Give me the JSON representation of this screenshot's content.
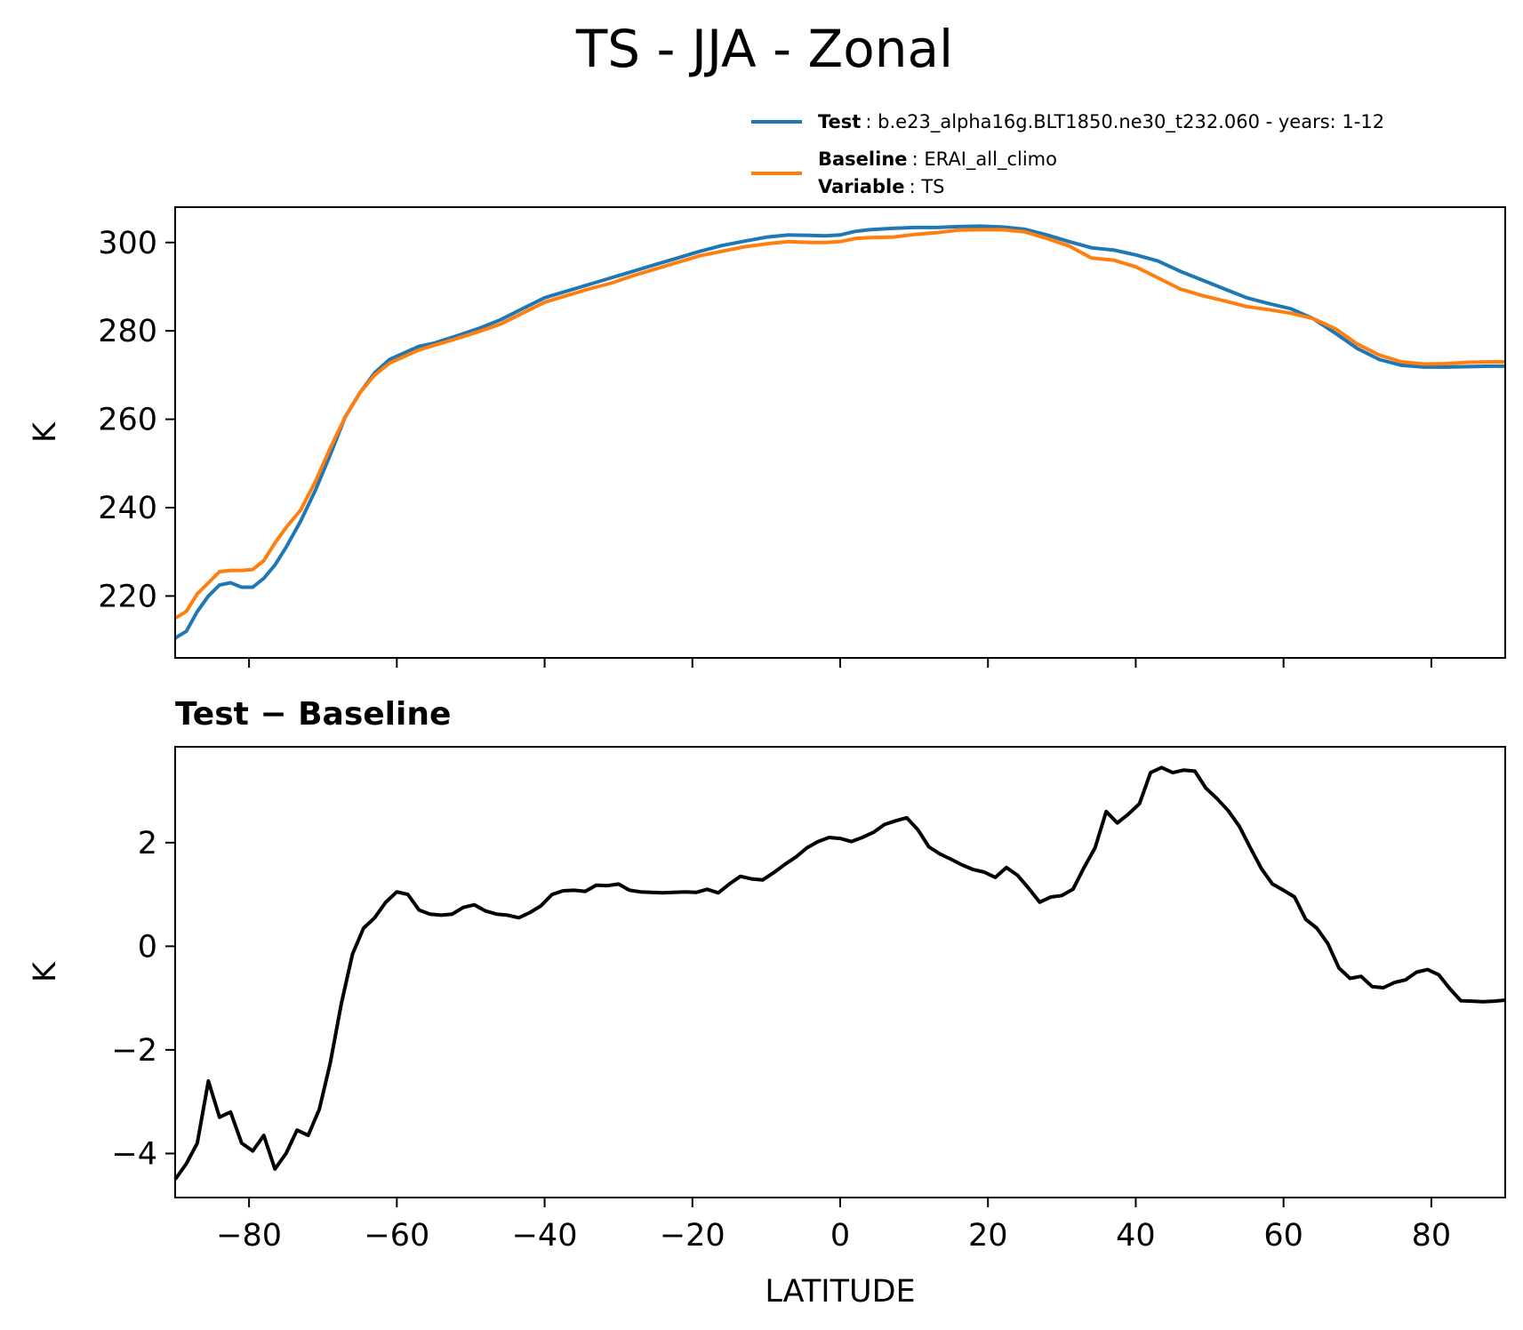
{
  "title": "TS - JJA - Zonal",
  "legend": {
    "test_key": "Test",
    "test_value": ": b.e23_alpha16g.BLT1850.ne30_t232.060 - years: 1-12",
    "baseline_key": "Baseline",
    "baseline_value": ": ERAI_all_climo",
    "variable_key": "Variable",
    "variable_value": ": TS"
  },
  "colors": {
    "test": "#1f77b4",
    "baseline": "#ff7f0e",
    "diff": "#000000"
  },
  "chart_data": [
    {
      "type": "line",
      "title": "",
      "xlabel": "",
      "ylabel": "K",
      "xlim": [
        -90,
        90
      ],
      "ylim": [
        206,
        308
      ],
      "xticks": [
        -80,
        -60,
        -40,
        -20,
        0,
        20,
        40,
        60,
        80
      ],
      "yticks": [
        220,
        240,
        260,
        280,
        300
      ],
      "ytick_labels": [
        "220",
        "240",
        "260",
        "280",
        "300"
      ],
      "x": [
        -90,
        -88.5,
        -87,
        -85.5,
        -84,
        -82.5,
        -81,
        -79.5,
        -78,
        -76.5,
        -75,
        -73,
        -71,
        -69,
        -67,
        -65,
        -63,
        -61,
        -59,
        -57,
        -55,
        -52,
        -49,
        -46,
        -43,
        -40,
        -37,
        -34,
        -31,
        -28,
        -25,
        -22,
        -19,
        -16,
        -13,
        -10,
        -7,
        -4,
        -2,
        0,
        2,
        4,
        7,
        10,
        13,
        16,
        19,
        22,
        25,
        28,
        31,
        34,
        37,
        40,
        43,
        46,
        49,
        52,
        55,
        58,
        61,
        64,
        67,
        70,
        73,
        76,
        79,
        82,
        85,
        88,
        90
      ],
      "series": [
        {
          "name": "Test",
          "values": [
            210.5,
            212,
            216.5,
            220,
            222.5,
            223,
            222,
            222,
            224,
            227,
            231,
            237,
            244,
            252,
            260.5,
            266,
            270.5,
            273.5,
            275,
            276.5,
            277.2,
            278.8,
            280.5,
            282.5,
            285,
            287.5,
            289,
            290.5,
            292,
            293.5,
            295,
            296.5,
            298,
            299.3,
            300.3,
            301.2,
            301.7,
            301.6,
            301.5,
            301.7,
            302.5,
            302.9,
            303.2,
            303.4,
            303.4,
            303.6,
            303.7,
            303.5,
            303.0,
            301.7,
            300.2,
            298.8,
            298.3,
            297.2,
            295.8,
            293.5,
            291.5,
            289.5,
            287.5,
            286.2,
            285,
            282.8,
            279.5,
            276,
            273.5,
            272.2,
            271.8,
            271.8,
            271.9,
            272,
            272
          ],
          "color": "#1f77b4"
        },
        {
          "name": "Baseline",
          "values": [
            215,
            216.5,
            220.5,
            223,
            225.5,
            225.8,
            225.8,
            226,
            228,
            232,
            235.5,
            239.5,
            246,
            253.5,
            260.5,
            266,
            270,
            272.7,
            274.2,
            275.7,
            276.7,
            278.2,
            279.8,
            281.5,
            284,
            286.5,
            288,
            289.5,
            290.8,
            292.5,
            294,
            295.5,
            297,
            298,
            299,
            299.7,
            300.2,
            300,
            300,
            300.2,
            300.9,
            301.1,
            301.2,
            301.8,
            302.2,
            302.8,
            302.9,
            302.9,
            302.4,
            300.9,
            299.2,
            296.5,
            296,
            294.5,
            292,
            289.5,
            288,
            286.8,
            285.5,
            284.8,
            284,
            282.8,
            280.5,
            277,
            274.5,
            273,
            272.5,
            272.6,
            272.9,
            273,
            273
          ]
        }
      ]
    },
    {
      "type": "line",
      "title": "Test − Baseline",
      "title_parts": [
        "Test",
        "−",
        "Baseline"
      ],
      "xlabel": "LATITUDE",
      "ylabel": "K",
      "xlim": [
        -90,
        90
      ],
      "ylim": [
        -4.85,
        3.85
      ],
      "xticks": [
        -80,
        -60,
        -40,
        -20,
        0,
        20,
        40,
        60,
        80
      ],
      "xtick_labels": [
        "−80",
        "−60",
        "−40",
        "−20",
        "0",
        "20",
        "40",
        "60",
        "80"
      ],
      "yticks": [
        -4,
        -2,
        0,
        2
      ],
      "ytick_labels": [
        "−4",
        "−2",
        "0",
        "2"
      ],
      "x": [
        -90,
        -88.5,
        -87,
        -85.5,
        -84,
        -82.5,
        -81,
        -79.5,
        -78,
        -76.5,
        -75,
        -73.5,
        -72,
        -70.5,
        -69,
        -67.5,
        -66,
        -64.5,
        -63,
        -61.5,
        -60,
        -58.5,
        -57,
        -55.5,
        -54,
        -52.5,
        -51,
        -49.5,
        -48,
        -46.5,
        -45,
        -43.5,
        -42,
        -40.5,
        -39,
        -37.5,
        -36,
        -34.5,
        -33,
        -31.5,
        -30,
        -28.5,
        -27,
        -24,
        -21,
        -19.5,
        -18,
        -16.5,
        -15,
        -13.5,
        -12,
        -10.5,
        -9,
        -7.5,
        -6,
        -4.5,
        -3,
        -1.5,
        0,
        1.5,
        3,
        4.5,
        6,
        7.5,
        9,
        10.5,
        12,
        13.5,
        15,
        16.5,
        18,
        19.5,
        21,
        22.5,
        24,
        25.5,
        27,
        28.5,
        30,
        31.5,
        33,
        34.5,
        36,
        37.5,
        39,
        40.5,
        42,
        43.5,
        45,
        46.5,
        48,
        49.5,
        51,
        52.5,
        54,
        55.5,
        57,
        58.5,
        60,
        61.5,
        63,
        64.5,
        66,
        67.5,
        69,
        70.5,
        72,
        73.5,
        75,
        76.5,
        78,
        79.5,
        81,
        82.5,
        84,
        85.5,
        87,
        88.5,
        90
      ],
      "series": [
        {
          "name": "Test − Baseline",
          "values": [
            -4.5,
            -4.2,
            -3.8,
            -2.6,
            -3.3,
            -3.2,
            -3.8,
            -3.95,
            -3.65,
            -4.3,
            -4.0,
            -3.55,
            -3.65,
            -3.15,
            -2.25,
            -1.1,
            -0.15,
            0.35,
            0.55,
            0.85,
            1.05,
            1.0,
            0.7,
            0.62,
            0.6,
            0.62,
            0.75,
            0.8,
            0.68,
            0.62,
            0.6,
            0.55,
            0.65,
            0.78,
            1.0,
            1.07,
            1.08,
            1.06,
            1.18,
            1.17,
            1.2,
            1.08,
            1.05,
            1.03,
            1.05,
            1.04,
            1.1,
            1.03,
            1.2,
            1.35,
            1.3,
            1.28,
            1.42,
            1.58,
            1.72,
            1.9,
            2.02,
            2.1,
            2.08,
            2.02,
            2.1,
            2.2,
            2.35,
            2.42,
            2.48,
            2.25,
            1.92,
            1.78,
            1.68,
            1.57,
            1.48,
            1.43,
            1.33,
            1.52,
            1.37,
            1.12,
            0.85,
            0.95,
            0.98,
            1.1,
            1.52,
            1.9,
            2.6,
            2.38,
            2.55,
            2.75,
            3.35,
            3.45,
            3.35,
            3.4,
            3.38,
            3.05,
            2.85,
            2.62,
            2.32,
            1.9,
            1.5,
            1.2,
            1.08,
            0.95,
            0.52,
            0.35,
            0.05,
            -0.42,
            -0.62,
            -0.58,
            -0.78,
            -0.8,
            -0.7,
            -0.65,
            -0.5,
            -0.45,
            -0.55,
            -0.82,
            -1.05,
            -1.06,
            -1.07,
            -1.06,
            -1.04
          ]
        }
      ]
    }
  ]
}
